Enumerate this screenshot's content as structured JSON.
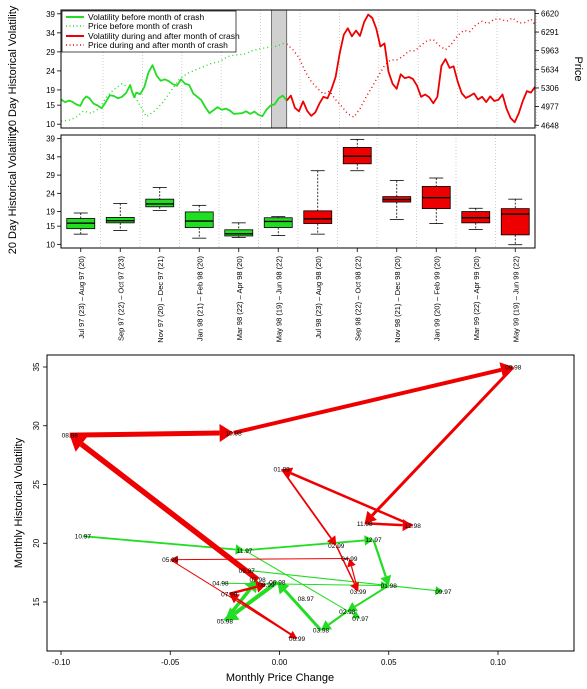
{
  "chart_data": [
    {
      "type": "line",
      "ylabel": "20 Day Historical Volatility",
      "ylabel_right": "Price",
      "left_axis": {
        "ticks": [
          10,
          15,
          19,
          24,
          29,
          34,
          39
        ],
        "ylim": [
          9,
          40
        ]
      },
      "right_axis": {
        "ticks": [
          4648,
          4977,
          5306,
          5634,
          5963,
          6291,
          6620
        ],
        "ylim": [
          4600,
          6680
        ]
      },
      "grid": "vertical dotted",
      "shaded_window": "month of crash",
      "legend": {
        "position": "top-left",
        "entries": [
          "Volatility before month of crash",
          "Price before month of crash",
          "Volatility during and after month of crash",
          "Price during and after month of crash"
        ]
      },
      "series": [
        {
          "name": "Volatility before month of crash",
          "color": "#22dd22",
          "style": "solid",
          "x": [
            0,
            4,
            8,
            11,
            15,
            19,
            22,
            25,
            28,
            32,
            36,
            40,
            44,
            48,
            52,
            56,
            60,
            64,
            68,
            70,
            72,
            74,
            78,
            82,
            86,
            90,
            94,
            98,
            102,
            106,
            110,
            114,
            118,
            122,
            126,
            130,
            134,
            138,
            142,
            146,
            150,
            154,
            158,
            162,
            166,
            170,
            174,
            178,
            182,
            186,
            190,
            194,
            198,
            202,
            206,
            210,
            214,
            218,
            222
          ],
          "values": [
            16.5,
            15.8,
            16.2,
            15.9,
            15.2,
            14.8,
            16.5,
            17.3,
            16.8,
            15.4,
            14.9,
            14.2,
            15.8,
            17.6,
            17.4,
            16.8,
            17.2,
            18.2,
            20.3,
            18.4,
            17.1,
            18.3,
            17.9,
            19.8,
            23.6,
            25.5,
            22.8,
            21.4,
            21.8,
            21.3,
            20.5,
            20.1,
            21.8,
            20.6,
            20.3,
            18.1,
            17.2,
            16.3,
            14.4,
            12.9,
            13.7,
            14.5,
            13.8,
            14.1,
            13.6,
            12.7,
            12.8,
            12.9,
            13.4,
            12.7,
            13.3,
            12.5,
            12.1,
            13.8,
            14.9,
            15.2,
            16.8,
            17.5,
            16.2
          ]
        },
        {
          "name": "Price before month of crash",
          "color": "#22dd22",
          "style": "dotted",
          "x": [
            0,
            8,
            15,
            22,
            30,
            38,
            45,
            52,
            60,
            68,
            76,
            84,
            92,
            100,
            108,
            116,
            124,
            132,
            140,
            148,
            156,
            164,
            172,
            180,
            188,
            196,
            204,
            212,
            220
          ],
          "values": [
            4720,
            4740,
            4790,
            4900,
            4860,
            4950,
            5150,
            5280,
            5380,
            5300,
            5050,
            4800,
            4900,
            5050,
            5250,
            5450,
            5560,
            5620,
            5680,
            5740,
            5770,
            5860,
            5890,
            5900,
            5960,
            6000,
            6020,
            6040,
            6100
          ]
        },
        {
          "name": "Volatility during and after month of crash",
          "color": "#ee0000",
          "style": "solid",
          "x": [
            222,
            226,
            230,
            234,
            238,
            242,
            246,
            250,
            254,
            258,
            262,
            266,
            270,
            274,
            278,
            282,
            286,
            290,
            294,
            298,
            302,
            306,
            310,
            314,
            318,
            322,
            326,
            330,
            334,
            338,
            342,
            346,
            350,
            354,
            358,
            362,
            366,
            370,
            374,
            378,
            382,
            386,
            390,
            394,
            398,
            402,
            406,
            410,
            414,
            418,
            422,
            426,
            430,
            434,
            438,
            442,
            446,
            450,
            454,
            458,
            462,
            466
          ],
          "values": [
            16.2,
            17.5,
            14.3,
            13.4,
            16.0,
            13.5,
            12.2,
            13.1,
            15.4,
            17.2,
            16.8,
            19.3,
            22.4,
            28.6,
            33.5,
            35.2,
            33.1,
            34.6,
            33.2,
            36.8,
            38.8,
            37.9,
            35.1,
            30.4,
            31.2,
            23.8,
            20.6,
            19.3,
            23.1,
            22.1,
            22.4,
            21.9,
            20.1,
            17.2,
            17.8,
            17.1,
            15.5,
            17.2,
            25.3,
            27.1,
            24.8,
            25.2,
            21.2,
            18.1,
            16.9,
            17.4,
            18.1,
            16.5,
            17.2,
            15.8,
            17.3,
            16.1,
            16.4,
            17.8,
            14.1,
            11.6,
            10.5,
            12.8,
            16.1,
            18.7,
            18.3,
            19.8
          ]
        },
        {
          "name": "Price during and after month of crash",
          "color": "#ee0000",
          "style": "dotted",
          "x": [
            222,
            228,
            234,
            240,
            246,
            252,
            258,
            264,
            270,
            276,
            282,
            288,
            294,
            300,
            306,
            312,
            318,
            324,
            330,
            336,
            342,
            348,
            354,
            360,
            366,
            372,
            378,
            384,
            390,
            396,
            402,
            408,
            414,
            420,
            426,
            432,
            438,
            444,
            450,
            456,
            462,
            466
          ],
          "values": [
            6080,
            5980,
            5840,
            5600,
            5420,
            5300,
            5200,
            5250,
            5100,
            4980,
            4850,
            4790,
            4940,
            5150,
            5330,
            5520,
            5700,
            5800,
            5800,
            5860,
            5960,
            5960,
            6060,
            6140,
            6160,
            6050,
            5980,
            6080,
            6230,
            6320,
            6300,
            6420,
            6480,
            6440,
            6520,
            6520,
            6480,
            6540,
            6450,
            6460,
            6520,
            6420
          ]
        }
      ]
    },
    {
      "type": "box",
      "ylabel": "20 Day Historical Volatility",
      "ylim": [
        9,
        40
      ],
      "yticks": [
        10,
        15,
        19,
        24,
        29,
        34,
        39
      ],
      "categories": [
        "Jul 97 (23) – Aug 97 (20)",
        "Sep 97 (22) – Oct 97 (23)",
        "Nov 97 (20) – Dec 97 (21)",
        "Jan 98 (21) – Feb 98 (20)",
        "Mar 98 (22) – Apr 98 (20)",
        "May 98 (19) – Jun 98 (22)",
        "Jul 98 (23) – Aug 98 (20)",
        "Sep 98 (22) – Oct 98 (22)",
        "Nov 98 (21) – Dec 98 (20)",
        "Jan 99 (20) – Feb 99 (20)",
        "Mar 99 (22) – Apr 99 (20)",
        "May 99 (19) – Jun 99 (22)"
      ],
      "boxes": [
        {
          "min": 12.8,
          "q1": 14.3,
          "median": 15.8,
          "q3": 17.1,
          "max": 18.6,
          "color": "#22dd22"
        },
        {
          "min": 13.8,
          "q1": 15.9,
          "median": 16.5,
          "q3": 17.4,
          "max": 21.2,
          "color": "#22dd22"
        },
        {
          "min": 19.3,
          "q1": 20.3,
          "median": 21.1,
          "q3": 22.4,
          "max": 25.6,
          "color": "#22dd22"
        },
        {
          "min": 11.7,
          "q1": 14.6,
          "median": 16.4,
          "q3": 18.9,
          "max": 20.7,
          "color": "#22dd22"
        },
        {
          "min": 11.9,
          "q1": 12.3,
          "median": 12.9,
          "q3": 14.0,
          "max": 15.9,
          "color": "#22dd22"
        },
        {
          "min": 12.4,
          "q1": 14.6,
          "median": 16.3,
          "q3": 17.3,
          "max": 17.6,
          "color": "#22dd22"
        },
        {
          "min": 12.8,
          "q1": 15.7,
          "median": 17.0,
          "q3": 19.2,
          "max": 30.2,
          "color": "#ee0000"
        },
        {
          "min": 30.2,
          "q1": 32.1,
          "median": 34.2,
          "q3": 36.6,
          "max": 38.8,
          "color": "#ee0000"
        },
        {
          "min": 16.8,
          "q1": 21.6,
          "median": 22.3,
          "q3": 23.1,
          "max": 27.5,
          "color": "#ee0000"
        },
        {
          "min": 15.7,
          "q1": 19.8,
          "median": 22.8,
          "q3": 25.9,
          "max": 28.2,
          "color": "#ee0000"
        },
        {
          "min": 14.1,
          "q1": 15.9,
          "median": 17.3,
          "q3": 19.0,
          "max": 19.9,
          "color": "#ee0000"
        },
        {
          "min": 9.9,
          "q1": 12.6,
          "median": 18.3,
          "q3": 19.8,
          "max": 22.4,
          "color": "#ee0000"
        }
      ]
    },
    {
      "type": "scatter",
      "xlabel": "Monthly Price Change",
      "ylabel": "Monthly Historical Volatility",
      "xlim": [
        -0.105,
        0.107
      ],
      "ylim": [
        11.0,
        36.4
      ],
      "xticks": [
        -0.1,
        -0.05,
        0.0,
        0.05,
        0.1
      ],
      "xtick_labels": [
        "-0.10",
        "-0.05",
        "0.00",
        "0.05",
        "0.10"
      ],
      "yticks": [
        15,
        20,
        25,
        30,
        35
      ],
      "points": [
        {
          "label": "07.97",
          "x": 0.037,
          "y": 13.6
        },
        {
          "label": "08.97",
          "x": 0.012,
          "y": 15.3
        },
        {
          "label": "09.97",
          "x": -0.015,
          "y": 17.7
        },
        {
          "label": "10.97",
          "x": -0.09,
          "y": 20.6
        },
        {
          "label": "11.97",
          "x": -0.016,
          "y": 19.4
        },
        {
          "label": "12.97",
          "x": 0.043,
          "y": 20.3
        },
        {
          "label": "01.98",
          "x": 0.05,
          "y": 16.4
        },
        {
          "label": "02.98",
          "x": 0.031,
          "y": 14.2
        },
        {
          "label": "03.98",
          "x": 0.019,
          "y": 12.6
        },
        {
          "label": "04.98",
          "x": -0.027,
          "y": 16.6
        },
        {
          "label": "05.98",
          "x": -0.025,
          "y": 13.4
        },
        {
          "label": "06.98",
          "x": -0.001,
          "y": 16.7
        },
        {
          "label": "07.98",
          "x": -0.01,
          "y": 16.9
        },
        {
          "label": "08.98",
          "x": -0.096,
          "y": 29.2
        },
        {
          "label": "09.98",
          "x": 0.107,
          "y": 35.0
        },
        {
          "label": "10.98",
          "x": -0.021,
          "y": 29.4
        },
        {
          "label": "11.98",
          "x": 0.039,
          "y": 21.7
        },
        {
          "label": "12.98",
          "x": 0.061,
          "y": 21.5
        },
        {
          "label": "01.99",
          "x": 0.001,
          "y": 26.3
        },
        {
          "label": "02.99",
          "x": 0.026,
          "y": 19.8
        },
        {
          "label": "03.99",
          "x": 0.036,
          "y": 15.9
        },
        {
          "label": "04.99",
          "x": 0.032,
          "y": 18.7
        },
        {
          "label": "05.99",
          "x": -0.05,
          "y": 18.6
        },
        {
          "label": "06.99",
          "x": 0.008,
          "y": 11.9
        },
        {
          "label": "07.99",
          "x": -0.023,
          "y": 15.7
        },
        {
          "label": "08.99",
          "x": -0.006,
          "y": 16.5
        },
        {
          "label": "09.97",
          "x": 0.075,
          "y": 15.9
        }
      ],
      "arrows": [
        {
          "from": [
            -0.09,
            20.6
          ],
          "to": [
            -0.016,
            19.4
          ],
          "color": "#22dd22",
          "width": 1.8
        },
        {
          "from": [
            -0.016,
            19.4
          ],
          "to": [
            0.043,
            20.3
          ],
          "color": "#22dd22",
          "width": 1.8
        },
        {
          "from": [
            0.043,
            20.3
          ],
          "to": [
            0.05,
            16.4
          ],
          "color": "#22dd22",
          "width": 2.2
        },
        {
          "from": [
            0.05,
            16.4
          ],
          "to": [
            0.031,
            14.2
          ],
          "color": "#22dd22",
          "width": 2.0
        },
        {
          "from": [
            0.031,
            14.2
          ],
          "to": [
            0.019,
            12.6
          ],
          "color": "#22dd22",
          "width": 2.2
        },
        {
          "from": [
            0.019,
            12.6
          ],
          "to": [
            -0.001,
            16.7
          ],
          "color": "#22dd22",
          "width": 3.0
        },
        {
          "from": [
            -0.001,
            16.7
          ],
          "to": [
            -0.025,
            13.4
          ],
          "color": "#22dd22",
          "width": 4.0
        },
        {
          "from": [
            -0.025,
            13.4
          ],
          "to": [
            -0.01,
            16.9
          ],
          "color": "#22dd22",
          "width": 3.5
        },
        {
          "from": [
            -0.015,
            17.7
          ],
          "to": [
            0.075,
            15.9
          ],
          "color": "#22dd22",
          "width": 1.2
        },
        {
          "from": [
            -0.016,
            19.4
          ],
          "to": [
            0.037,
            13.6
          ],
          "color": "#22dd22",
          "width": 1.0
        },
        {
          "from": [
            -0.027,
            16.6
          ],
          "to": [
            0.05,
            16.4
          ],
          "color": "#22dd22",
          "width": 1.0
        },
        {
          "from": [
            -0.01,
            16.9
          ],
          "to": [
            -0.096,
            29.2
          ],
          "color": "#ee0000",
          "width": 5.5
        },
        {
          "from": [
            -0.096,
            29.2
          ],
          "to": [
            -0.021,
            29.4
          ],
          "color": "#ee0000",
          "width": 5.0
        },
        {
          "from": [
            -0.021,
            29.4
          ],
          "to": [
            0.107,
            35.0
          ],
          "color": "#ee0000",
          "width": 4.0
        },
        {
          "from": [
            0.107,
            35.0
          ],
          "to": [
            0.039,
            21.7
          ],
          "color": "#ee0000",
          "width": 3.0
        },
        {
          "from": [
            0.039,
            21.7
          ],
          "to": [
            0.061,
            21.5
          ],
          "color": "#ee0000",
          "width": 2.5
        },
        {
          "from": [
            0.061,
            21.5
          ],
          "to": [
            0.001,
            26.3
          ],
          "color": "#ee0000",
          "width": 2.5
        },
        {
          "from": [
            0.001,
            26.3
          ],
          "to": [
            0.026,
            19.8
          ],
          "color": "#ee0000",
          "width": 1.8
        },
        {
          "from": [
            0.026,
            19.8
          ],
          "to": [
            0.036,
            15.9
          ],
          "color": "#ee0000",
          "width": 1.5
        },
        {
          "from": [
            0.036,
            15.9
          ],
          "to": [
            0.032,
            18.7
          ],
          "color": "#ee0000",
          "width": 1.2
        },
        {
          "from": [
            0.032,
            18.7
          ],
          "to": [
            -0.05,
            18.6
          ],
          "color": "#ee0000",
          "width": 1.0
        },
        {
          "from": [
            -0.05,
            18.6
          ],
          "to": [
            0.008,
            11.9
          ],
          "color": "#ee0000",
          "width": 1.0
        },
        {
          "from": [
            0.008,
            11.9
          ],
          "to": [
            -0.023,
            15.7
          ],
          "color": "#ee0000",
          "width": 2.0
        },
        {
          "from": [
            -0.023,
            15.7
          ],
          "to": [
            -0.006,
            16.5
          ],
          "color": "#ee0000",
          "width": 2.5
        }
      ]
    }
  ]
}
